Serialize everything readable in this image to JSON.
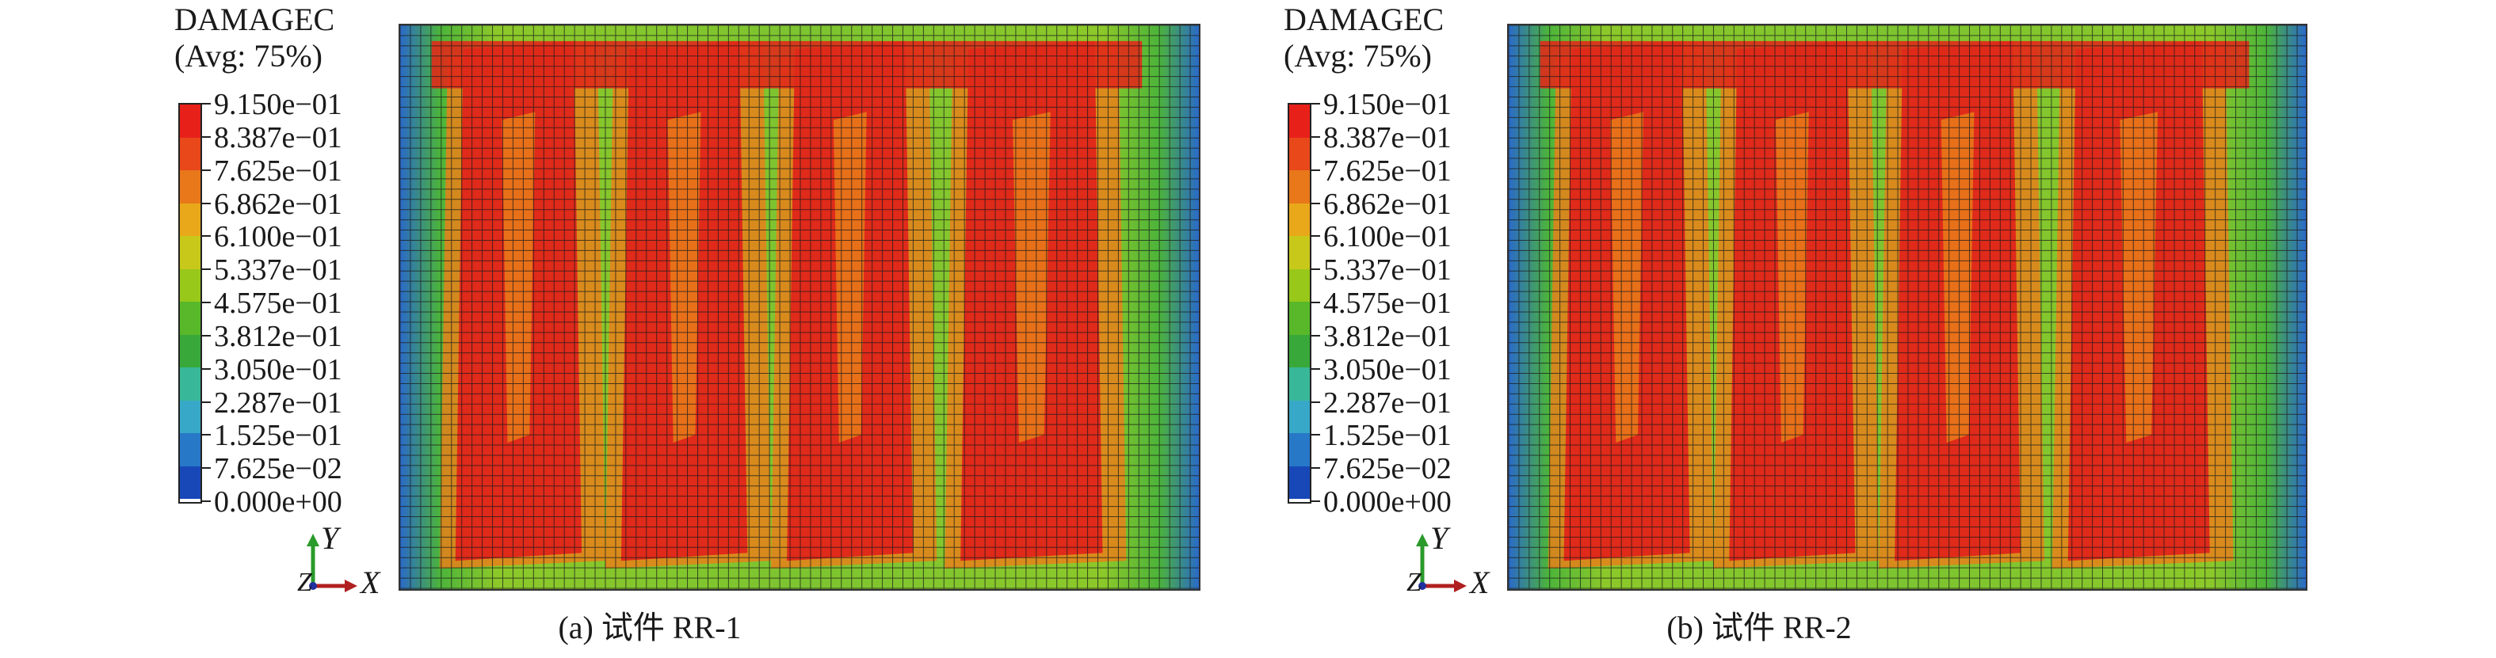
{
  "legend": {
    "variable": "DAMAGEC",
    "averaging": "(Avg: 75%)",
    "values": [
      "9.150e−01",
      "8.387e−01",
      "7.625e−01",
      "6.862e−01",
      "6.100e−01",
      "5.337e−01",
      "4.575e−01",
      "3.812e−01",
      "3.050e−01",
      "2.287e−01",
      "1.525e−01",
      "7.625e−02",
      "0.000e+00"
    ],
    "colors": [
      "#e8201a",
      "#e8481a",
      "#e8781a",
      "#e8a81a",
      "#c8c81a",
      "#98c81a",
      "#58b82a",
      "#38a83a",
      "#38b898",
      "#38a8c8",
      "#2878c8",
      "#1848b8",
      "#1028a0"
    ]
  },
  "triad": {
    "y": "Y",
    "x": "X",
    "z": "Z"
  },
  "panels": [
    {
      "caption": "(a) 试件 RR-1"
    },
    {
      "caption": "(b) 试件 RR-2"
    }
  ],
  "palette": {
    "low": "#1c3aa8",
    "mid": "#3cb040",
    "high": "#e02a1a",
    "warm": "#e8801a",
    "grid": "#1a1a1a"
  }
}
